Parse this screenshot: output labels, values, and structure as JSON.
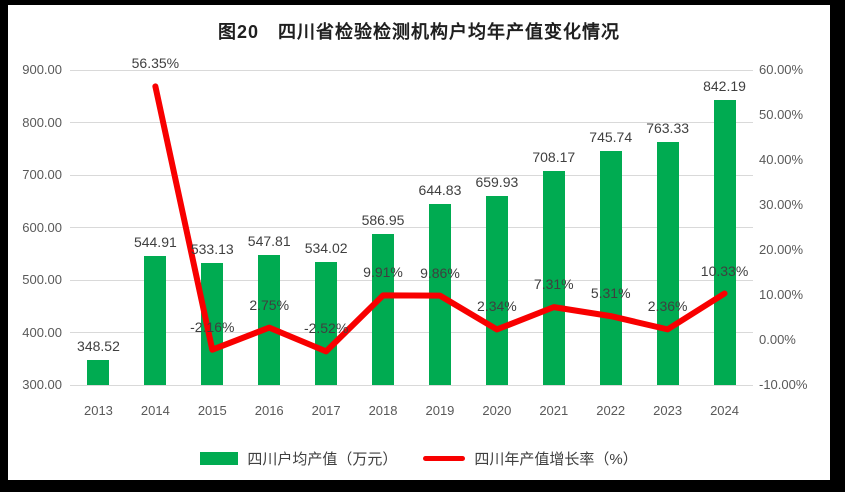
{
  "chart_data": {
    "type": "bar",
    "title": "图20　四川省检验检测机构户均年产值变化情况",
    "categories": [
      "2013",
      "2014",
      "2015",
      "2016",
      "2017",
      "2018",
      "2019",
      "2020",
      "2021",
      "2022",
      "2023",
      "2024"
    ],
    "series": [
      {
        "name": "四川户均产值（万元）",
        "type": "bar",
        "axis": "left",
        "color": "#00AB51",
        "values": [
          348.52,
          544.91,
          533.13,
          547.81,
          534.02,
          586.95,
          644.83,
          659.93,
          708.17,
          745.74,
          763.33,
          842.19
        ],
        "labels": [
          "348.52",
          "544.91",
          "533.13",
          "547.81",
          "534.02",
          "586.95",
          "644.83",
          "659.93",
          "708.17",
          "745.74",
          "763.33",
          "842.19"
        ]
      },
      {
        "name": "四川年产值增长率（%）",
        "type": "line",
        "axis": "right",
        "color": "#F80000",
        "values": [
          null,
          56.35,
          -2.16,
          2.75,
          -2.52,
          9.91,
          9.86,
          2.34,
          7.31,
          5.31,
          2.36,
          10.33
        ],
        "labels": [
          null,
          "56.35%",
          "-2.16%",
          "2.75%",
          "-2.52%",
          "9.91%",
          "9.86%",
          "2.34%",
          "7.31%",
          "5.31%",
          "2.36%",
          "10.33%"
        ]
      }
    ],
    "left_axis": {
      "min": 300,
      "max": 900,
      "tick_values": [
        300,
        400,
        500,
        600,
        700,
        800,
        900
      ],
      "tick_labels": [
        "300.00",
        "400.00",
        "500.00",
        "600.00",
        "700.00",
        "800.00",
        "900.00"
      ]
    },
    "right_axis": {
      "min": -10,
      "max": 60,
      "tick_values": [
        -10,
        0,
        10,
        20,
        30,
        40,
        50,
        60
      ],
      "tick_labels": [
        "-10.00%",
        "0.00%",
        "10.00%",
        "20.00%",
        "30.00%",
        "40.00%",
        "50.00%",
        "60.00%"
      ]
    },
    "grid": true,
    "legend_position": "bottom"
  }
}
